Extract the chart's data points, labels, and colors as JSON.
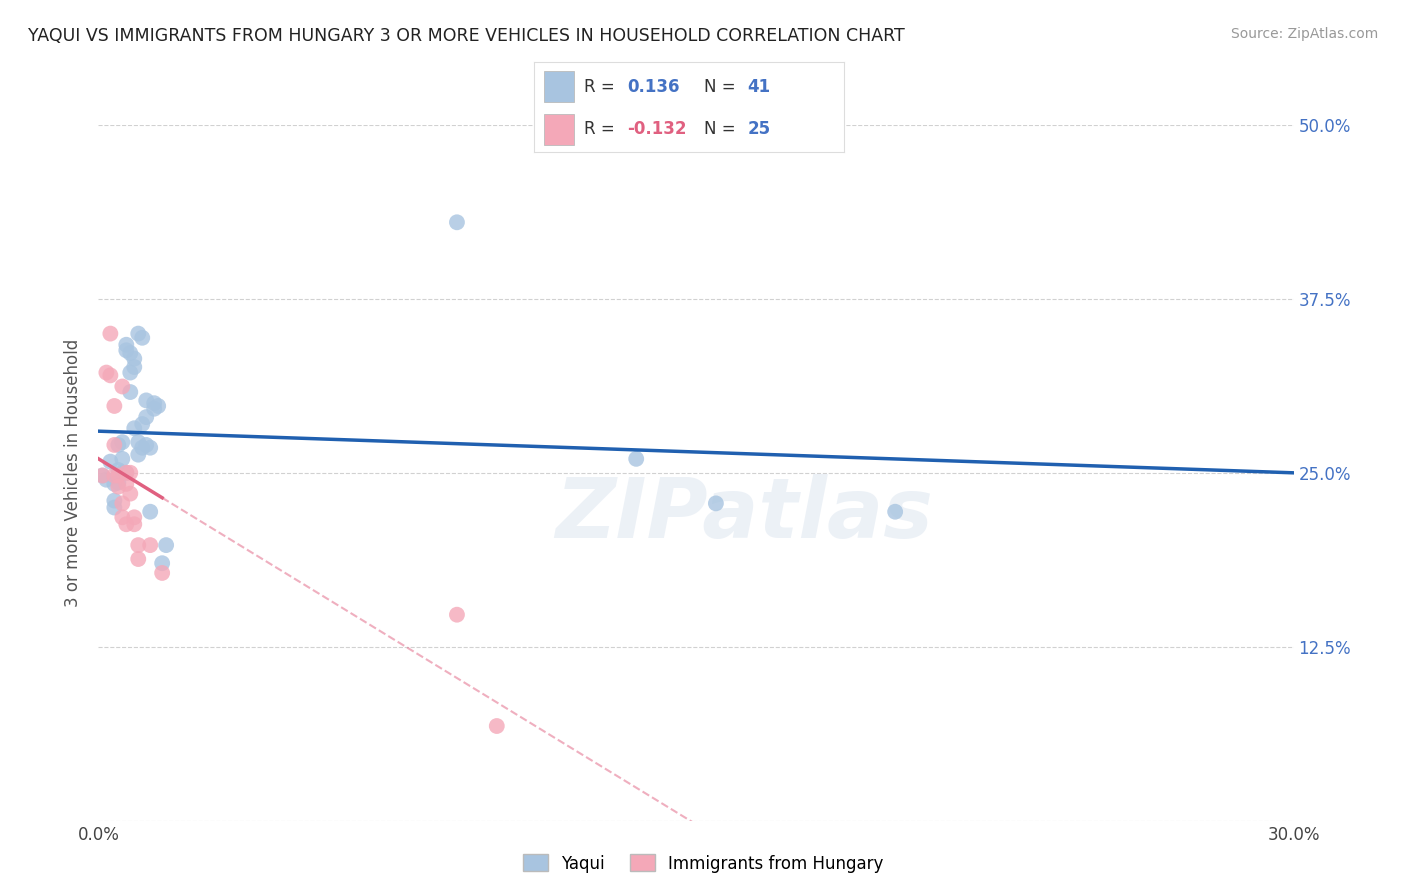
{
  "title": "YAQUI VS IMMIGRANTS FROM HUNGARY 3 OR MORE VEHICLES IN HOUSEHOLD CORRELATION CHART",
  "source": "Source: ZipAtlas.com",
  "ylabel": "3 or more Vehicles in Household",
  "x_min": 0.0,
  "x_max": 0.3,
  "y_min": 0.0,
  "y_max": 0.5,
  "x_ticks": [
    0.0,
    0.05,
    0.1,
    0.15,
    0.2,
    0.25,
    0.3
  ],
  "x_tick_labels": [
    "0.0%",
    "",
    "",
    "",
    "",
    "",
    "30.0%"
  ],
  "y_ticks": [
    0.0,
    0.125,
    0.25,
    0.375,
    0.5
  ],
  "y_tick_labels_right": [
    "",
    "12.5%",
    "25.0%",
    "37.5%",
    "50.0%"
  ],
  "R_yaqui": 0.136,
  "N_yaqui": 41,
  "R_hungary": -0.132,
  "N_hungary": 25,
  "yaqui_color": "#a8c4e0",
  "hungary_color": "#f4a8b8",
  "yaqui_line_color": "#2060b0",
  "hungary_line_color": "#e06080",
  "background_color": "#ffffff",
  "watermark": "ZIPatlas",
  "yaqui_points": [
    [
      0.001,
      0.248
    ],
    [
      0.002,
      0.245
    ],
    [
      0.003,
      0.258
    ],
    [
      0.004,
      0.242
    ],
    [
      0.004,
      0.23
    ],
    [
      0.004,
      0.225
    ],
    [
      0.005,
      0.252
    ],
    [
      0.005,
      0.243
    ],
    [
      0.005,
      0.27
    ],
    [
      0.006,
      0.26
    ],
    [
      0.006,
      0.272
    ],
    [
      0.006,
      0.25
    ],
    [
      0.007,
      0.25
    ],
    [
      0.007,
      0.342
    ],
    [
      0.007,
      0.338
    ],
    [
      0.008,
      0.336
    ],
    [
      0.008,
      0.322
    ],
    [
      0.008,
      0.308
    ],
    [
      0.009,
      0.282
    ],
    [
      0.009,
      0.332
    ],
    [
      0.009,
      0.326
    ],
    [
      0.01,
      0.272
    ],
    [
      0.01,
      0.263
    ],
    [
      0.01,
      0.35
    ],
    [
      0.011,
      0.347
    ],
    [
      0.011,
      0.285
    ],
    [
      0.011,
      0.268
    ],
    [
      0.012,
      0.302
    ],
    [
      0.012,
      0.29
    ],
    [
      0.012,
      0.27
    ],
    [
      0.013,
      0.268
    ],
    [
      0.013,
      0.222
    ],
    [
      0.014,
      0.3
    ],
    [
      0.014,
      0.296
    ],
    [
      0.015,
      0.298
    ],
    [
      0.016,
      0.185
    ],
    [
      0.017,
      0.198
    ],
    [
      0.09,
      0.43
    ],
    [
      0.135,
      0.26
    ],
    [
      0.155,
      0.228
    ],
    [
      0.2,
      0.222
    ]
  ],
  "hungary_points": [
    [
      0.001,
      0.248
    ],
    [
      0.002,
      0.322
    ],
    [
      0.003,
      0.32
    ],
    [
      0.003,
      0.35
    ],
    [
      0.004,
      0.298
    ],
    [
      0.004,
      0.27
    ],
    [
      0.004,
      0.248
    ],
    [
      0.005,
      0.248
    ],
    [
      0.005,
      0.24
    ],
    [
      0.006,
      0.228
    ],
    [
      0.006,
      0.312
    ],
    [
      0.006,
      0.218
    ],
    [
      0.007,
      0.213
    ],
    [
      0.007,
      0.25
    ],
    [
      0.007,
      0.242
    ],
    [
      0.008,
      0.235
    ],
    [
      0.008,
      0.25
    ],
    [
      0.009,
      0.218
    ],
    [
      0.009,
      0.213
    ],
    [
      0.01,
      0.198
    ],
    [
      0.01,
      0.188
    ],
    [
      0.013,
      0.198
    ],
    [
      0.016,
      0.178
    ],
    [
      0.09,
      0.148
    ],
    [
      0.1,
      0.068
    ]
  ]
}
